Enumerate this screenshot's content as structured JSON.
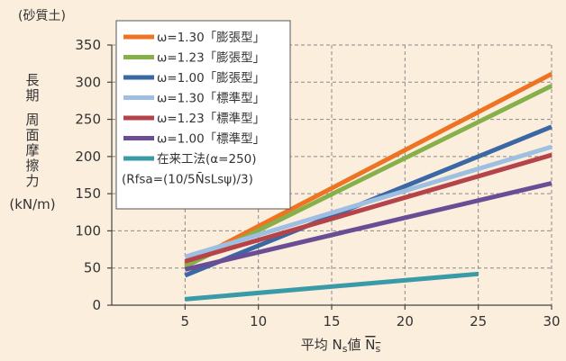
{
  "chart_data": {
    "type": "line",
    "title": "(砂質土)",
    "ylabel_lines": [
      "長",
      "期",
      "",
      "周",
      "面",
      "摩",
      "擦",
      "力"
    ],
    "yunit": "(kN/m)",
    "xlabel": {
      "prefix": "平均 N",
      "sub": "s",
      "mid": "値 ",
      "over": "N",
      "over_sub": "s"
    },
    "xlim": [
      0,
      30
    ],
    "ylim": [
      0,
      350
    ],
    "x_ticks": [
      5,
      10,
      15,
      20,
      25,
      30
    ],
    "y_ticks": [
      0,
      50,
      100,
      150,
      200,
      250,
      300,
      350
    ],
    "grid": true,
    "legend_position": "top-left",
    "series": [
      {
        "name": "ω=1.30「膨張型」",
        "color": "#ee7322",
        "x": [
          5,
          30
        ],
        "y": [
          55,
          311
        ]
      },
      {
        "name": "ω=1.23「膨張型」",
        "color": "#86b04a",
        "x": [
          5,
          30
        ],
        "y": [
          52,
          295
        ]
      },
      {
        "name": "ω=1.00「膨張型」",
        "color": "#3b67a4",
        "x": [
          5,
          30
        ],
        "y": [
          40,
          240
        ]
      },
      {
        "name": "ω=1.30「標準型」",
        "color": "#9ebfe2",
        "x": [
          5,
          30
        ],
        "y": [
          65,
          213
        ]
      },
      {
        "name": "ω=1.23「標準型」",
        "color": "#b5434a",
        "x": [
          5,
          30
        ],
        "y": [
          59,
          202
        ]
      },
      {
        "name": "ω=1.00「標準型」",
        "color": "#6a4d95",
        "x": [
          5,
          30
        ],
        "y": [
          48,
          164
        ]
      },
      {
        "name": "在来工法(α=250)",
        "color": "#3a9ba8",
        "x": [
          5,
          25
        ],
        "y": [
          8,
          42
        ]
      }
    ],
    "legend_note": "(Rfsa=(10/5N̄sLsψ)/3)"
  }
}
